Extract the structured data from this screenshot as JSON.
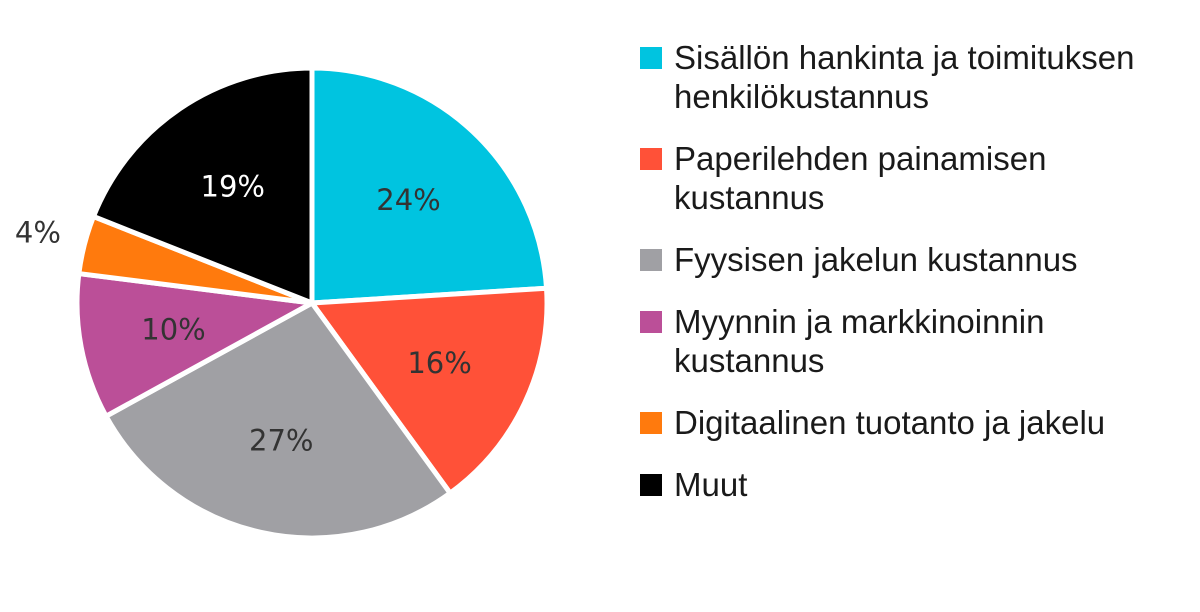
{
  "chart_data": {
    "type": "pie",
    "title": "",
    "slices": [
      {
        "label": "Sisällön hankinta ja toimituksen henkilökustannus",
        "value": 24,
        "display": "24%",
        "color": "#00c4e0",
        "text_color": "#333333"
      },
      {
        "label": "Paperilehden painamisen kustannus",
        "value": 16,
        "display": "16%",
        "color": "#ff5138",
        "text_color": "#333333"
      },
      {
        "label": "Fyysisen jakelun kustannus",
        "value": 27,
        "display": "27%",
        "color": "#a0a0a4",
        "text_color": "#333333"
      },
      {
        "label": "Myynnin ja markkinoinnin kustannus",
        "value": 10,
        "display": "10%",
        "color": "#bb4f98",
        "text_color": "#333333"
      },
      {
        "label": "Digitaalinen tuotanto ja jakelu",
        "value": 4,
        "display": "4%",
        "color": "#ff7a0d",
        "text_color": "#333333"
      },
      {
        "label": "Muut",
        "value": 19,
        "display": "19%",
        "color": "#000000",
        "text_color": "#ffffff"
      }
    ],
    "legend_position": "right"
  }
}
